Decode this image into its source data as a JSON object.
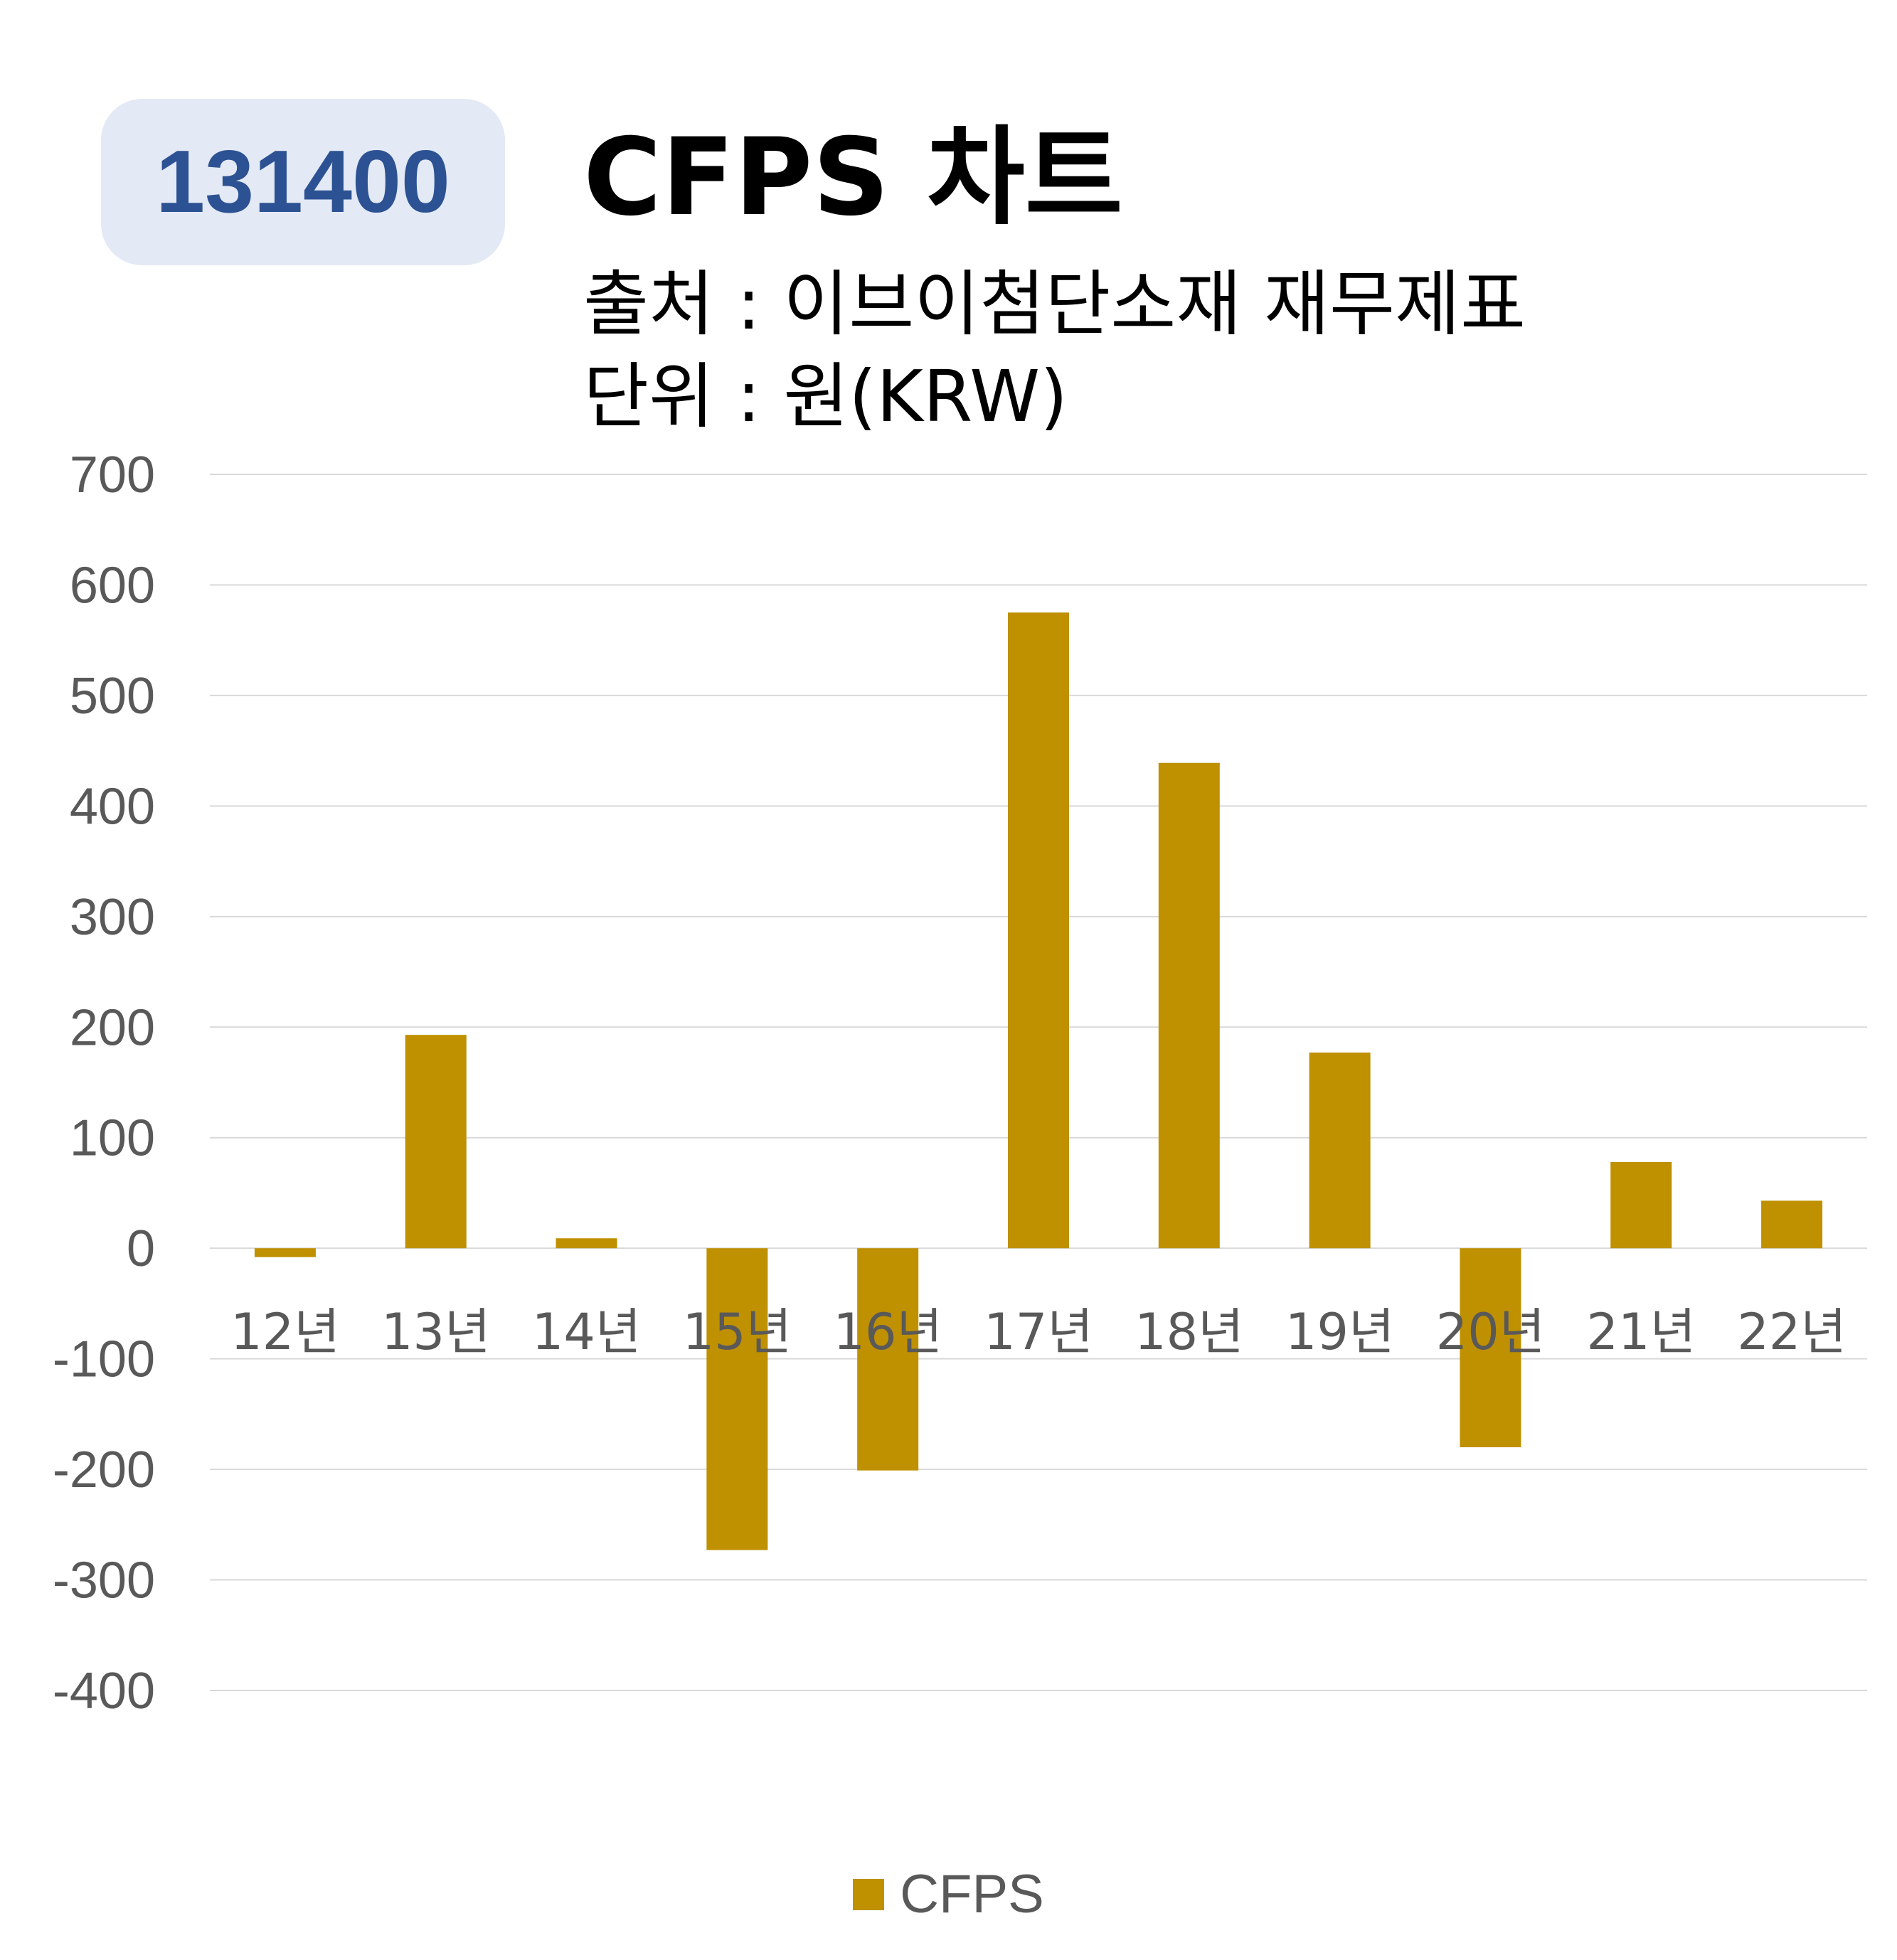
{
  "badge": {
    "code": "131400"
  },
  "header": {
    "title": "CFPS 차트",
    "source": "출처 : 이브이첨단소재 재무제표",
    "unit": "단위 : 원(KRW)"
  },
  "colors": {
    "bar": "#bf9000",
    "grid": "#d9d9d9",
    "tick_text": "#595959",
    "badge_bg": "#e3e9f5",
    "badge_text": "#2d5293"
  },
  "chart_data": {
    "type": "bar",
    "categories": [
      "12년",
      "13년",
      "14년",
      "15년",
      "16년",
      "17년",
      "18년",
      "19년",
      "20년",
      "21년",
      "22년"
    ],
    "series": [
      {
        "name": "CFPS",
        "values": [
          -8,
          193,
          9,
          -273,
          -201,
          575,
          439,
          177,
          -180,
          78,
          43
        ]
      }
    ],
    "ylim": [
      -400,
      700
    ],
    "yticks": [
      700,
      600,
      500,
      400,
      300,
      200,
      100,
      0,
      -100,
      -200,
      -300,
      -400
    ],
    "grid": true,
    "legend": "bottom",
    "xlabel": "",
    "ylabel": ""
  }
}
